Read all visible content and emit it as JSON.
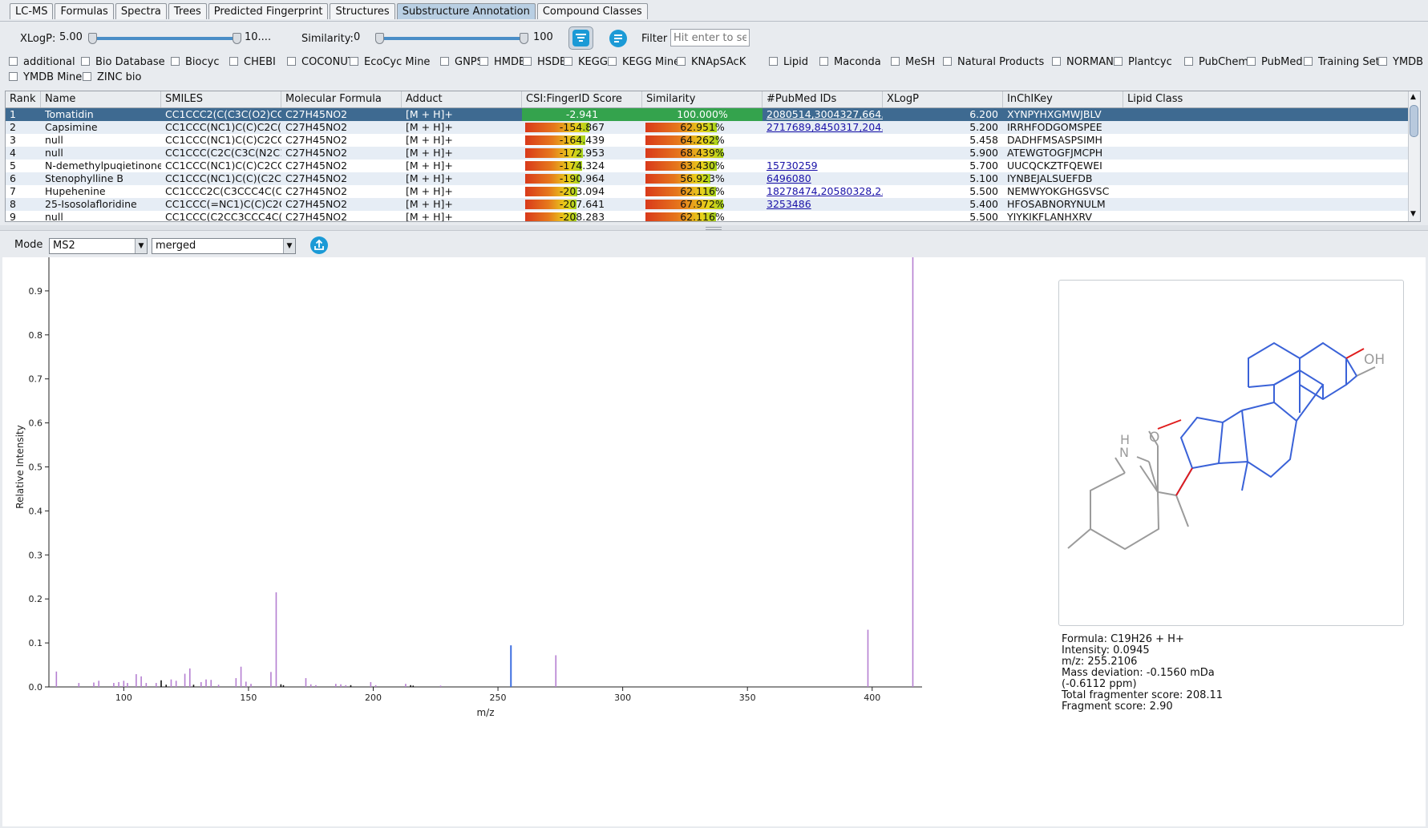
{
  "tabs": [
    "LC-MS",
    "Formulas",
    "Spectra",
    "Trees",
    "Predicted Fingerprint",
    "Structures",
    "Substructure Annotation",
    "Compound Classes"
  ],
  "active_tab": "Substructure Annotation",
  "filters": {
    "xlogp_label": "XLogP:",
    "xlogp_min": "5.00",
    "xlogp_max": "10....",
    "similarity_label": "Similarity:",
    "similarity_min": "0",
    "similarity_max": "100",
    "filter_label": "Filter",
    "filter_placeholder": "Hit enter to search"
  },
  "databases": [
    "additional",
    "Bio Database",
    "Biocyc",
    "CHEBI",
    "COCONUT",
    "EcoCyc Mine",
    "GNPS",
    "HMDB",
    "HSDB",
    "KEGG",
    "KEGG Mine",
    "KNApSAcK",
    "Lipid",
    "Maconda",
    "MeSH",
    "Natural Products",
    "NORMAN",
    "Plantcyc",
    "PubChem",
    "PubMed",
    "Training Set",
    "YMDB",
    "YMDB Mine",
    "ZINC bio"
  ],
  "table": {
    "columns": [
      "Rank",
      "Name",
      "SMILES",
      "Molecular Formula",
      "Adduct",
      "CSI:FingerID Score",
      "Similarity",
      "#PubMed IDs",
      "XLogP",
      "InChIKey",
      "Lipid Class"
    ],
    "rows": [
      {
        "rank": "1",
        "name": "Tomatidin",
        "smiles": "CC1CCC2(C(C3C(O2)CC...",
        "formula": "C27H45NO2",
        "adduct": "[M + H]+",
        "score": "-2.941",
        "score_frac": 1.0,
        "similarity": "100.000%",
        "sim_frac": 1.0,
        "pubmed": "2080514,3004327,664...",
        "xlogp": "6.200",
        "inchikey": "XYNPYHXGMWJBLV",
        "lipid": ""
      },
      {
        "rank": "2",
        "name": "Capsimine",
        "smiles": "CC1CCC(NC1)C(C)C2C(C...",
        "formula": "C27H45NO2",
        "adduct": "[M + H]+",
        "score": "-154.867",
        "score_frac": 0.56,
        "similarity": "62.951%",
        "sim_frac": 0.63,
        "pubmed": "2717689,8450317,204...",
        "xlogp": "5.200",
        "inchikey": "IRRHFODGOMSPEE",
        "lipid": ""
      },
      {
        "rank": "3",
        "name": "null",
        "smiles": "CC1CCC(NC1)C(C)C2CC...",
        "formula": "C27H45NO2",
        "adduct": "[M + H]+",
        "score": "-164.439",
        "score_frac": 0.53,
        "similarity": "64.262%",
        "sim_frac": 0.64,
        "pubmed": "",
        "xlogp": "5.458",
        "inchikey": "DADHFMSASPSIMH",
        "lipid": ""
      },
      {
        "rank": "4",
        "name": "null",
        "smiles": "CC1CCC(C2C(C3C(N2C1)...",
        "formula": "C27H45NO2",
        "adduct": "[M + H]+",
        "score": "-172.953",
        "score_frac": 0.51,
        "similarity": "68.439%",
        "sim_frac": 0.68,
        "pubmed": "",
        "xlogp": "5.900",
        "inchikey": "ATEWGTOGFJMCPH",
        "lipid": ""
      },
      {
        "rank": "5",
        "name": "N-demethylpuqietinone",
        "smiles": "CC1CCC(NC1)C(C)C2CC...",
        "formula": "C27H45NO2",
        "adduct": "[M + H]+",
        "score": "-174.324",
        "score_frac": 0.5,
        "similarity": "63.430%",
        "sim_frac": 0.63,
        "pubmed": "15730259",
        "xlogp": "5.700",
        "inchikey": "UUCQCKZTFQEWEI",
        "lipid": ""
      },
      {
        "rank": "6",
        "name": "Stenophylline B",
        "smiles": "CC1CCC(NC1)C(C)(C2CC...",
        "formula": "C27H45NO2",
        "adduct": "[M + H]+",
        "score": "-190.964",
        "score_frac": 0.48,
        "similarity": "56.923%",
        "sim_frac": 0.57,
        "pubmed": "6496080",
        "xlogp": "5.100",
        "inchikey": "IYNBEJALSUEFDB",
        "lipid": ""
      },
      {
        "rank": "7",
        "name": "Hupehenine",
        "smiles": "CC1CCC2C(C3CCC4C(C3...",
        "formula": "C27H45NO2",
        "adduct": "[M + H]+",
        "score": "-203.094",
        "score_frac": 0.46,
        "similarity": "62.116%",
        "sim_frac": 0.62,
        "pubmed": "18278474,20580328,2...",
        "xlogp": "5.500",
        "inchikey": "NEMWYOKGHGSVSC",
        "lipid": ""
      },
      {
        "rank": "8",
        "name": "25-Isosolafloridine",
        "smiles": "CC1CCC(=NC1)C(C)C2C(...",
        "formula": "C27H45NO2",
        "adduct": "[M + H]+",
        "score": "-207.641",
        "score_frac": 0.45,
        "similarity": "67.972%",
        "sim_frac": 0.68,
        "pubmed": "3253486",
        "xlogp": "5.400",
        "inchikey": "HFOSABNORYNULM",
        "lipid": ""
      },
      {
        "rank": "9",
        "name": "null",
        "smiles": "CC1CCC(C2CC3CCC4C(C3...",
        "formula": "C27H45NO2",
        "adduct": "[M + H]+",
        "score": "-208.283",
        "score_frac": 0.45,
        "similarity": "62.116%",
        "sim_frac": 0.62,
        "pubmed": "",
        "xlogp": "5.500",
        "inchikey": "YIYKIKFLANHXRV",
        "lipid": ""
      }
    ]
  },
  "mode": {
    "label": "Mode",
    "value": "MS2",
    "spectrum": "merged"
  },
  "chart_data": {
    "type": "bar",
    "xlabel": "m/z",
    "ylabel": "Relative Intensity",
    "xlim": [
      70,
      420
    ],
    "ylim": [
      0,
      1.0
    ],
    "xticks": [
      100,
      150,
      200,
      250,
      300,
      350,
      400
    ],
    "yticks": [
      0.0,
      0.1,
      0.2,
      0.3,
      0.4,
      0.5,
      0.6,
      0.7,
      0.8,
      0.9,
      1.0
    ],
    "colors": {
      "annotated": "#b57fd1",
      "unannotated": "#111111",
      "selected": "#3e6fe0"
    },
    "peaks": [
      {
        "mz": 73.0,
        "intensity": 0.035,
        "kind": "annotated"
      },
      {
        "mz": 82.0,
        "intensity": 0.009,
        "kind": "annotated"
      },
      {
        "mz": 88.0,
        "intensity": 0.01,
        "kind": "annotated"
      },
      {
        "mz": 90.0,
        "intensity": 0.014,
        "kind": "annotated"
      },
      {
        "mz": 96.0,
        "intensity": 0.009,
        "kind": "annotated"
      },
      {
        "mz": 98.0,
        "intensity": 0.011,
        "kind": "annotated"
      },
      {
        "mz": 100.0,
        "intensity": 0.014,
        "kind": "annotated"
      },
      {
        "mz": 101.5,
        "intensity": 0.009,
        "kind": "annotated"
      },
      {
        "mz": 105.0,
        "intensity": 0.029,
        "kind": "annotated"
      },
      {
        "mz": 107.0,
        "intensity": 0.024,
        "kind": "annotated"
      },
      {
        "mz": 109.0,
        "intensity": 0.009,
        "kind": "annotated"
      },
      {
        "mz": 113.0,
        "intensity": 0.009,
        "kind": "annotated"
      },
      {
        "mz": 115.0,
        "intensity": 0.015,
        "kind": "unannotated"
      },
      {
        "mz": 117.0,
        "intensity": 0.005,
        "kind": "unannotated"
      },
      {
        "mz": 119.0,
        "intensity": 0.017,
        "kind": "annotated"
      },
      {
        "mz": 121.0,
        "intensity": 0.014,
        "kind": "annotated"
      },
      {
        "mz": 124.5,
        "intensity": 0.03,
        "kind": "annotated"
      },
      {
        "mz": 126.5,
        "intensity": 0.042,
        "kind": "annotated"
      },
      {
        "mz": 128.0,
        "intensity": 0.005,
        "kind": "unannotated"
      },
      {
        "mz": 131.0,
        "intensity": 0.011,
        "kind": "annotated"
      },
      {
        "mz": 133.0,
        "intensity": 0.017,
        "kind": "annotated"
      },
      {
        "mz": 135.0,
        "intensity": 0.016,
        "kind": "annotated"
      },
      {
        "mz": 138.0,
        "intensity": 0.005,
        "kind": "annotated"
      },
      {
        "mz": 145.0,
        "intensity": 0.02,
        "kind": "annotated"
      },
      {
        "mz": 147.0,
        "intensity": 0.046,
        "kind": "annotated"
      },
      {
        "mz": 149.0,
        "intensity": 0.012,
        "kind": "annotated"
      },
      {
        "mz": 151.0,
        "intensity": 0.007,
        "kind": "annotated"
      },
      {
        "mz": 159.0,
        "intensity": 0.034,
        "kind": "annotated"
      },
      {
        "mz": 161.1,
        "intensity": 0.215,
        "kind": "annotated"
      },
      {
        "mz": 163.0,
        "intensity": 0.006,
        "kind": "unannotated"
      },
      {
        "mz": 164.0,
        "intensity": 0.004,
        "kind": "unannotated"
      },
      {
        "mz": 173.0,
        "intensity": 0.02,
        "kind": "annotated"
      },
      {
        "mz": 175.0,
        "intensity": 0.006,
        "kind": "annotated"
      },
      {
        "mz": 177.0,
        "intensity": 0.004,
        "kind": "annotated"
      },
      {
        "mz": 185.0,
        "intensity": 0.007,
        "kind": "annotated"
      },
      {
        "mz": 187.0,
        "intensity": 0.006,
        "kind": "annotated"
      },
      {
        "mz": 189.0,
        "intensity": 0.004,
        "kind": "annotated"
      },
      {
        "mz": 191.0,
        "intensity": 0.004,
        "kind": "unannotated"
      },
      {
        "mz": 199.0,
        "intensity": 0.011,
        "kind": "annotated"
      },
      {
        "mz": 201.0,
        "intensity": 0.004,
        "kind": "annotated"
      },
      {
        "mz": 213.0,
        "intensity": 0.007,
        "kind": "annotated"
      },
      {
        "mz": 215.0,
        "intensity": 0.004,
        "kind": "unannotated"
      },
      {
        "mz": 216.0,
        "intensity": 0.003,
        "kind": "unannotated"
      },
      {
        "mz": 227.0,
        "intensity": 0.003,
        "kind": "annotated"
      },
      {
        "mz": 255.2,
        "intensity": 0.0945,
        "kind": "selected"
      },
      {
        "mz": 273.2,
        "intensity": 0.072,
        "kind": "annotated"
      },
      {
        "mz": 398.3,
        "intensity": 0.13,
        "kind": "annotated"
      },
      {
        "mz": 416.3,
        "intensity": 1.0,
        "kind": "annotated"
      }
    ]
  },
  "structure": {
    "oh_label": "OH",
    "o_label": "O",
    "n_label": "N",
    "h_label": "H"
  },
  "peak_info": {
    "formula": "Formula: C19H26 + H+",
    "intensity": "Intensity: 0.0945",
    "mz": "m/z: 255.2106",
    "mass_dev": "Mass deviation: -0.1560 mDa",
    "mass_dev_ppm": "(-0.6112 ppm)",
    "total_score": "Total fragmenter score: 208.11",
    "fragment_score": "Fragment score: 2.90"
  }
}
